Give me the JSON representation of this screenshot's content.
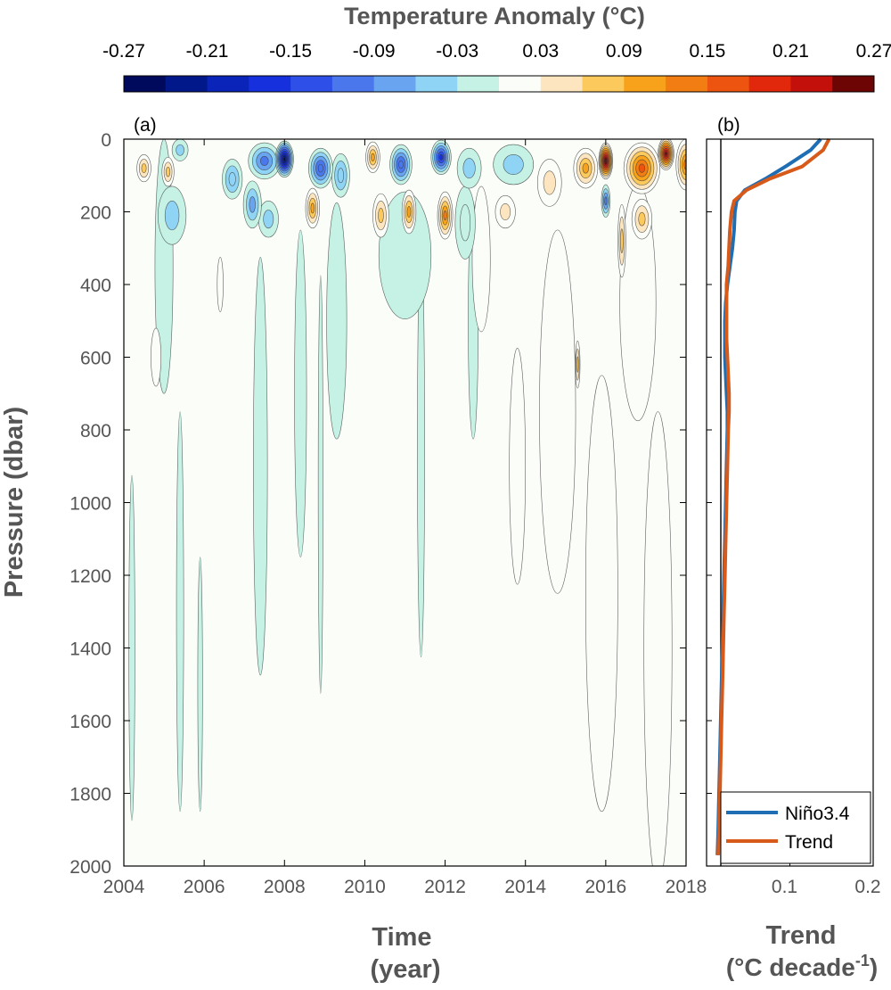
{
  "chart_data": [
    {
      "panel": "colorbar",
      "type": "heatmap",
      "title": "Temperature Anomaly (°C)",
      "tick_labels": [
        "-0.27",
        "-0.21",
        "-0.15",
        "-0.09",
        "-0.03",
        "0.03",
        "0.09",
        "0.15",
        "0.21",
        "0.27"
      ],
      "range": [
        -0.27,
        0.27
      ],
      "levels": [
        {
          "lo": -0.27,
          "hi": -0.24,
          "color": "#000a5c"
        },
        {
          "lo": -0.24,
          "hi": -0.21,
          "color": "#00188a"
        },
        {
          "lo": -0.21,
          "hi": -0.18,
          "color": "#0a23b8"
        },
        {
          "lo": -0.18,
          "hi": -0.15,
          "color": "#1530dc"
        },
        {
          "lo": -0.15,
          "hi": -0.12,
          "color": "#2e4fe8"
        },
        {
          "lo": -0.12,
          "hi": -0.09,
          "color": "#4a78ec"
        },
        {
          "lo": -0.09,
          "hi": -0.06,
          "color": "#68a4f0"
        },
        {
          "lo": -0.06,
          "hi": -0.03,
          "color": "#8fd3f5"
        },
        {
          "lo": -0.03,
          "hi": 0.0,
          "color": "#c5f2e4"
        },
        {
          "lo": 0.0,
          "hi": 0.03,
          "color": "#fbfdf9"
        },
        {
          "lo": 0.03,
          "hi": 0.06,
          "color": "#fde6bf"
        },
        {
          "lo": 0.06,
          "hi": 0.09,
          "color": "#fbc95c"
        },
        {
          "lo": 0.09,
          "hi": 0.12,
          "color": "#f7a21a"
        },
        {
          "lo": 0.12,
          "hi": 0.15,
          "color": "#f27d13"
        },
        {
          "lo": 0.15,
          "hi": 0.18,
          "color": "#ec5410"
        },
        {
          "lo": 0.18,
          "hi": 0.21,
          "color": "#e1280d"
        },
        {
          "lo": 0.21,
          "hi": 0.24,
          "color": "#c4100a"
        },
        {
          "lo": 0.24,
          "hi": 0.27,
          "color": "#6e0505"
        }
      ]
    },
    {
      "panel": "a",
      "type": "heatmap",
      "label": "(a)",
      "xlabel": "Time\n(year)",
      "ylabel": "Pressure (dbar)",
      "xlim": [
        2004,
        2018
      ],
      "ylim": [
        2000,
        0
      ],
      "x_ticks": [
        2004,
        2006,
        2008,
        2010,
        2012,
        2014,
        2016,
        2018
      ],
      "y_ticks": [
        0,
        200,
        400,
        600,
        800,
        1000,
        1200,
        1400,
        1600,
        1800,
        2000
      ],
      "background_value": 0.0,
      "features": [
        {
          "x": 2004.2,
          "y": 1400,
          "w": 0.15,
          "h": 950,
          "v": -0.02
        },
        {
          "x": 2005.4,
          "y": 1300,
          "w": 0.18,
          "h": 1100,
          "v": -0.02
        },
        {
          "x": 2005.0,
          "y": 350,
          "w": 0.45,
          "h": 700,
          "v": -0.02
        },
        {
          "x": 2005.9,
          "y": 1500,
          "w": 0.12,
          "h": 700,
          "v": -0.02
        },
        {
          "x": 2007.4,
          "y": 900,
          "w": 0.35,
          "h": 1150,
          "v": -0.02
        },
        {
          "x": 2008.4,
          "y": 700,
          "w": 0.3,
          "h": 900,
          "v": -0.02
        },
        {
          "x": 2008.9,
          "y": 950,
          "w": 0.12,
          "h": 1150,
          "v": -0.02
        },
        {
          "x": 2009.3,
          "y": 500,
          "w": 0.5,
          "h": 650,
          "v": -0.02
        },
        {
          "x": 2011.4,
          "y": 850,
          "w": 0.18,
          "h": 1150,
          "v": -0.02
        },
        {
          "x": 2012.7,
          "y": 500,
          "w": 0.25,
          "h": 650,
          "v": -0.02
        },
        {
          "x": 2011.0,
          "y": 320,
          "w": 1.3,
          "h": 350,
          "v": -0.02
        },
        {
          "x": 2017.3,
          "y": 1400,
          "w": 0.7,
          "h": 1300,
          "v": 0.02
        },
        {
          "x": 2015.9,
          "y": 1250,
          "w": 0.8,
          "h": 1200,
          "v": 0.02
        },
        {
          "x": 2014.8,
          "y": 750,
          "w": 0.9,
          "h": 1000,
          "v": 0.02
        },
        {
          "x": 2013.8,
          "y": 900,
          "w": 0.4,
          "h": 650,
          "v": 0.02
        },
        {
          "x": 2016.8,
          "y": 450,
          "w": 0.9,
          "h": 650,
          "v": 0.02
        },
        {
          "x": 2012.9,
          "y": 330,
          "w": 0.45,
          "h": 400,
          "v": 0.02
        },
        {
          "x": 2015.3,
          "y": 620,
          "w": 0.12,
          "h": 130,
          "v": 0.06
        },
        {
          "x": 2016.4,
          "y": 280,
          "w": 0.2,
          "h": 200,
          "v": 0.06
        },
        {
          "x": 2004.8,
          "y": 600,
          "w": 0.25,
          "h": 160,
          "v": 0.02
        },
        {
          "x": 2006.4,
          "y": 400,
          "w": 0.15,
          "h": 150,
          "v": 0.02
        },
        {
          "x": 2006.7,
          "y": 110,
          "w": 0.5,
          "h": 110,
          "v": -0.06
        },
        {
          "x": 2007.2,
          "y": 180,
          "w": 0.45,
          "h": 130,
          "v": -0.08
        },
        {
          "x": 2008.0,
          "y": 55,
          "w": 0.45,
          "h": 100,
          "v": -0.26
        },
        {
          "x": 2007.5,
          "y": 60,
          "w": 0.8,
          "h": 100,
          "v": -0.1
        },
        {
          "x": 2008.9,
          "y": 80,
          "w": 0.6,
          "h": 110,
          "v": -0.12
        },
        {
          "x": 2009.4,
          "y": 100,
          "w": 0.45,
          "h": 120,
          "v": -0.06
        },
        {
          "x": 2010.2,
          "y": 50,
          "w": 0.35,
          "h": 85,
          "v": 0.11
        },
        {
          "x": 2010.9,
          "y": 70,
          "w": 0.55,
          "h": 110,
          "v": -0.12
        },
        {
          "x": 2011.9,
          "y": 50,
          "w": 0.5,
          "h": 95,
          "v": -0.17
        },
        {
          "x": 2012.6,
          "y": 80,
          "w": 0.6,
          "h": 110,
          "v": -0.04
        },
        {
          "x": 2013.7,
          "y": 70,
          "w": 1.0,
          "h": 110,
          "v": -0.04
        },
        {
          "x": 2012.5,
          "y": 230,
          "w": 0.5,
          "h": 200,
          "v": -0.03
        },
        {
          "x": 2007.6,
          "y": 220,
          "w": 0.5,
          "h": 100,
          "v": -0.05
        },
        {
          "x": 2005.2,
          "y": 210,
          "w": 0.7,
          "h": 160,
          "v": -0.04
        },
        {
          "x": 2008.7,
          "y": 190,
          "w": 0.35,
          "h": 110,
          "v": 0.11
        },
        {
          "x": 2010.4,
          "y": 210,
          "w": 0.4,
          "h": 120,
          "v": 0.08
        },
        {
          "x": 2011.1,
          "y": 200,
          "w": 0.35,
          "h": 120,
          "v": 0.11
        },
        {
          "x": 2012.0,
          "y": 210,
          "w": 0.38,
          "h": 130,
          "v": 0.12
        },
        {
          "x": 2013.5,
          "y": 200,
          "w": 0.5,
          "h": 90,
          "v": 0.04
        },
        {
          "x": 2004.5,
          "y": 80,
          "w": 0.35,
          "h": 75,
          "v": 0.07
        },
        {
          "x": 2005.1,
          "y": 90,
          "w": 0.3,
          "h": 80,
          "v": 0.08
        },
        {
          "x": 2005.4,
          "y": 30,
          "w": 0.4,
          "h": 60,
          "v": -0.04
        },
        {
          "x": 2014.6,
          "y": 120,
          "w": 0.6,
          "h": 130,
          "v": 0.04
        },
        {
          "x": 2015.5,
          "y": 80,
          "w": 0.6,
          "h": 110,
          "v": 0.1
        },
        {
          "x": 2016.0,
          "y": 60,
          "w": 0.35,
          "h": 100,
          "v": 0.27
        },
        {
          "x": 2016.9,
          "y": 80,
          "w": 0.9,
          "h": 140,
          "v": 0.15
        },
        {
          "x": 2017.5,
          "y": 40,
          "w": 0.4,
          "h": 90,
          "v": 0.24
        },
        {
          "x": 2018.0,
          "y": 70,
          "w": 0.5,
          "h": 140,
          "v": 0.12
        },
        {
          "x": 2016.0,
          "y": 170,
          "w": 0.22,
          "h": 90,
          "v": -0.11
        },
        {
          "x": 2016.9,
          "y": 220,
          "w": 0.5,
          "h": 110,
          "v": 0.06
        }
      ]
    },
    {
      "panel": "b",
      "type": "line",
      "label": "(b)",
      "xlabel": "Trend",
      "xlabel_unit_prefix": "(°C decade",
      "xlabel_unit_exp": "-1",
      "xlabel_unit_suffix": ")",
      "xlim": [
        0,
        0.2
      ],
      "ylim": [
        2000,
        0
      ],
      "x_ticks": [
        0.1,
        0.2
      ],
      "x_tick_labels": [
        "0.1",
        "0.2"
      ],
      "legend_position": "bottom-right",
      "series": [
        {
          "name": "Niño3.4",
          "color": "#1f6db3",
          "points": [
            [
              0.137,
              0
            ],
            [
              0.125,
              30
            ],
            [
              0.095,
              75
            ],
            [
              0.07,
              110
            ],
            [
              0.046,
              140
            ],
            [
              0.036,
              170
            ],
            [
              0.034,
              200
            ],
            [
              0.033,
              250
            ],
            [
              0.031,
              300
            ],
            [
              0.028,
              350
            ],
            [
              0.025,
              400
            ],
            [
              0.023,
              450
            ],
            [
              0.022,
              500
            ],
            [
              0.022,
              550
            ],
            [
              0.022,
              600
            ],
            [
              0.023,
              650
            ],
            [
              0.024,
              700
            ],
            [
              0.025,
              750
            ],
            [
              0.025,
              800
            ],
            [
              0.024,
              900
            ],
            [
              0.023,
              1000
            ],
            [
              0.022,
              1100
            ],
            [
              0.021,
              1200
            ],
            [
              0.02,
              1300
            ],
            [
              0.019,
              1400
            ],
            [
              0.018,
              1500
            ],
            [
              0.017,
              1600
            ],
            [
              0.016,
              1700
            ],
            [
              0.015,
              1800
            ],
            [
              0.014,
              1900
            ],
            [
              0.013,
              1970
            ]
          ]
        },
        {
          "name": "Trend",
          "color": "#d85a1a",
          "points": [
            [
              0.147,
              0
            ],
            [
              0.14,
              30
            ],
            [
              0.115,
              75
            ],
            [
              0.075,
              110
            ],
            [
              0.048,
              140
            ],
            [
              0.033,
              170
            ],
            [
              0.03,
              200
            ],
            [
              0.028,
              250
            ],
            [
              0.027,
              300
            ],
            [
              0.026,
              350
            ],
            [
              0.024,
              400
            ],
            [
              0.024,
              450
            ],
            [
              0.024,
              500
            ],
            [
              0.024,
              550
            ],
            [
              0.025,
              600
            ],
            [
              0.026,
              650
            ],
            [
              0.027,
              700
            ],
            [
              0.027,
              750
            ],
            [
              0.026,
              800
            ],
            [
              0.025,
              900
            ],
            [
              0.024,
              1000
            ],
            [
              0.023,
              1100
            ],
            [
              0.022,
              1200
            ],
            [
              0.021,
              1300
            ],
            [
              0.02,
              1400
            ],
            [
              0.019,
              1500
            ],
            [
              0.018,
              1600
            ],
            [
              0.017,
              1700
            ],
            [
              0.016,
              1800
            ],
            [
              0.015,
              1900
            ],
            [
              0.014,
              1970
            ]
          ]
        }
      ]
    }
  ]
}
